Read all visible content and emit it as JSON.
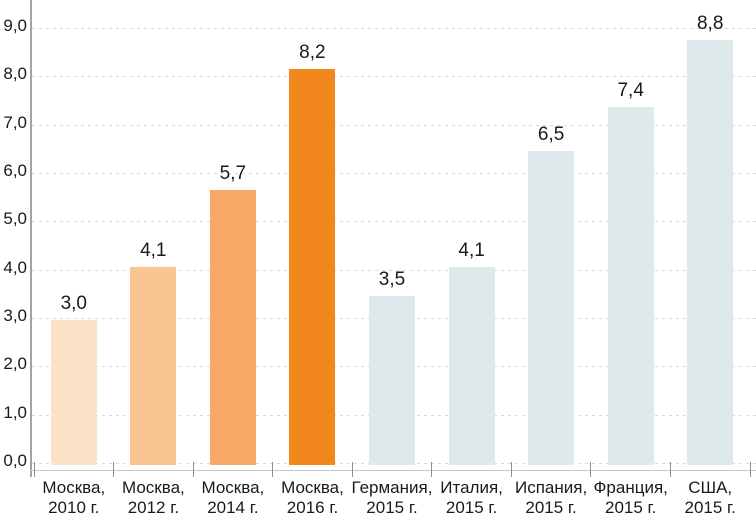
{
  "chart_data": {
    "type": "bar",
    "title": "",
    "categories": [
      "Москва, 2010 г.",
      "Москва, 2012 г.",
      "Москва, 2014 г.",
      "Москва, 2016 г.",
      "Германия, 2015 г.",
      "Италия, 2015 г.",
      "Испания, 2015 г.",
      "Франция, 2015 г.",
      "США, 2015 г."
    ],
    "category_lines": [
      [
        "Москва,",
        "2010 г."
      ],
      [
        "Москва,",
        "2012 г."
      ],
      [
        "Москва,",
        "2014 г."
      ],
      [
        "Москва,",
        "2016 г."
      ],
      [
        "Германия,",
        "2015 г."
      ],
      [
        "Италия,",
        "2015 г."
      ],
      [
        "Испания,",
        "2015 г."
      ],
      [
        "Франция,",
        "2015 г."
      ],
      [
        "США,",
        "2015 г."
      ]
    ],
    "values": [
      3.0,
      4.1,
      5.7,
      8.2,
      3.5,
      4.1,
      6.5,
      7.4,
      8.8
    ],
    "value_labels": [
      "3,0",
      "4,1",
      "5,7",
      "8,2",
      "3,5",
      "4,1",
      "6,5",
      "7,4",
      "8,8"
    ],
    "y_tick_labels": [
      "0,0",
      "1,0",
      "2,0",
      "3,0",
      "4,0",
      "5,0",
      "6,0",
      "7,0",
      "8,0",
      "9,0"
    ],
    "ylim": [
      0,
      9
    ],
    "y_step": 1.0,
    "grid": true,
    "legend": "none",
    "xlabel": "",
    "ylabel": "",
    "bar_colors": [
      "#FBE3C8",
      "#F9C593",
      "#F8A965",
      "#F2871E",
      "#DDE9EB",
      "#DDE9EB",
      "#DDE9EB",
      "#DDE9EB",
      "#DDE9EB"
    ],
    "highlight_index": 3,
    "highlight_color": "#F2871E",
    "colors": {
      "text": "#1A1A1A",
      "grid": "#D7D7D7",
      "y_axis": "#A3A3A3",
      "x_axis": "#C6C6C6",
      "tick": "#8F8F8F",
      "background": "#FFFFFF"
    }
  }
}
